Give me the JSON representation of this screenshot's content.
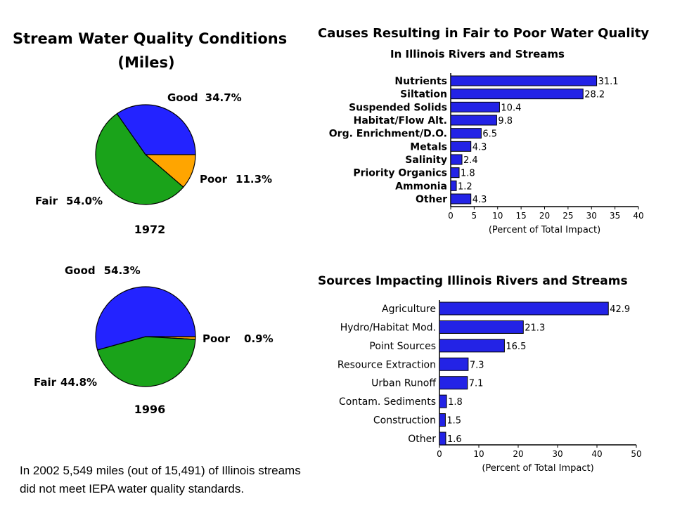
{
  "colors": {
    "good": "#2323ff",
    "fair": "#1aa31a",
    "poor": "#ffa500",
    "bar": "#2323e6"
  },
  "chart_data": [
    {
      "type": "pie",
      "title": "Stream Water Quality Conditions",
      "subtitle": "(Miles)",
      "year": "1972",
      "slices": [
        {
          "label": "Good",
          "value": 34.7,
          "display": "34.7%"
        },
        {
          "label": "Poor",
          "value": 11.3,
          "display": "11.3%"
        },
        {
          "label": "Fair",
          "value": 54.0,
          "display": "54.0%"
        }
      ]
    },
    {
      "type": "pie",
      "year": "1996",
      "slices": [
        {
          "label": "Good",
          "value": 54.3,
          "display": "54.3%"
        },
        {
          "label": "Poor",
          "value": 0.9,
          "display": "0.9%"
        },
        {
          "label": "Fair",
          "value": 44.8,
          "display": "44.8%"
        }
      ]
    },
    {
      "type": "bar",
      "title": "Causes Resulting in Fair to Poor Water Quality",
      "subtitle": "In Illinois Rivers and Streams",
      "categories": [
        "Nutrients",
        "Siltation",
        "Suspended Solids",
        "Habitat/Flow Alt.",
        "Org. Enrichment/D.O.",
        "Metals",
        "Salinity",
        "Priority Organics",
        "Ammonia",
        "Other"
      ],
      "values": [
        31.1,
        28.2,
        10.4,
        9.8,
        6.5,
        4.3,
        2.4,
        1.8,
        1.2,
        4.3
      ],
      "value_labels": [
        "31.1",
        "28.2",
        "10.4",
        "9.8",
        "6.5",
        "4.3",
        "2.4",
        "1.8",
        "1.2",
        "4.3"
      ],
      "xlim": [
        0,
        40
      ],
      "ticks": [
        "0",
        "5",
        "10",
        "15",
        "20",
        "25",
        "30",
        "35",
        "40"
      ],
      "xlabel": "(Percent of Total Impact)"
    },
    {
      "type": "bar",
      "title": "Sources Impacting Illinois Rivers and Streams",
      "categories": [
        "Agriculture",
        "Hydro/Habitat Mod.",
        "Point Sources",
        "Resource Extraction",
        "Urban Runoff",
        "Contam. Sediments",
        "Construction",
        "Other"
      ],
      "values": [
        42.9,
        21.3,
        16.5,
        7.3,
        7.1,
        1.8,
        1.5,
        1.6
      ],
      "value_labels": [
        "42.9",
        "21.3",
        "16.5",
        "7.3",
        "7.1",
        "1.8",
        "1.5",
        "1.6"
      ],
      "xlim": [
        0,
        50
      ],
      "ticks": [
        "0",
        "10",
        "20",
        "30",
        "40",
        "50"
      ],
      "xlabel": "(Percent of Total Impact)"
    }
  ],
  "note": {
    "line1": "In 2002 5,549 miles (out of 15,491) of Illinois streams",
    "line2": "did not meet IEPA water quality standards."
  }
}
